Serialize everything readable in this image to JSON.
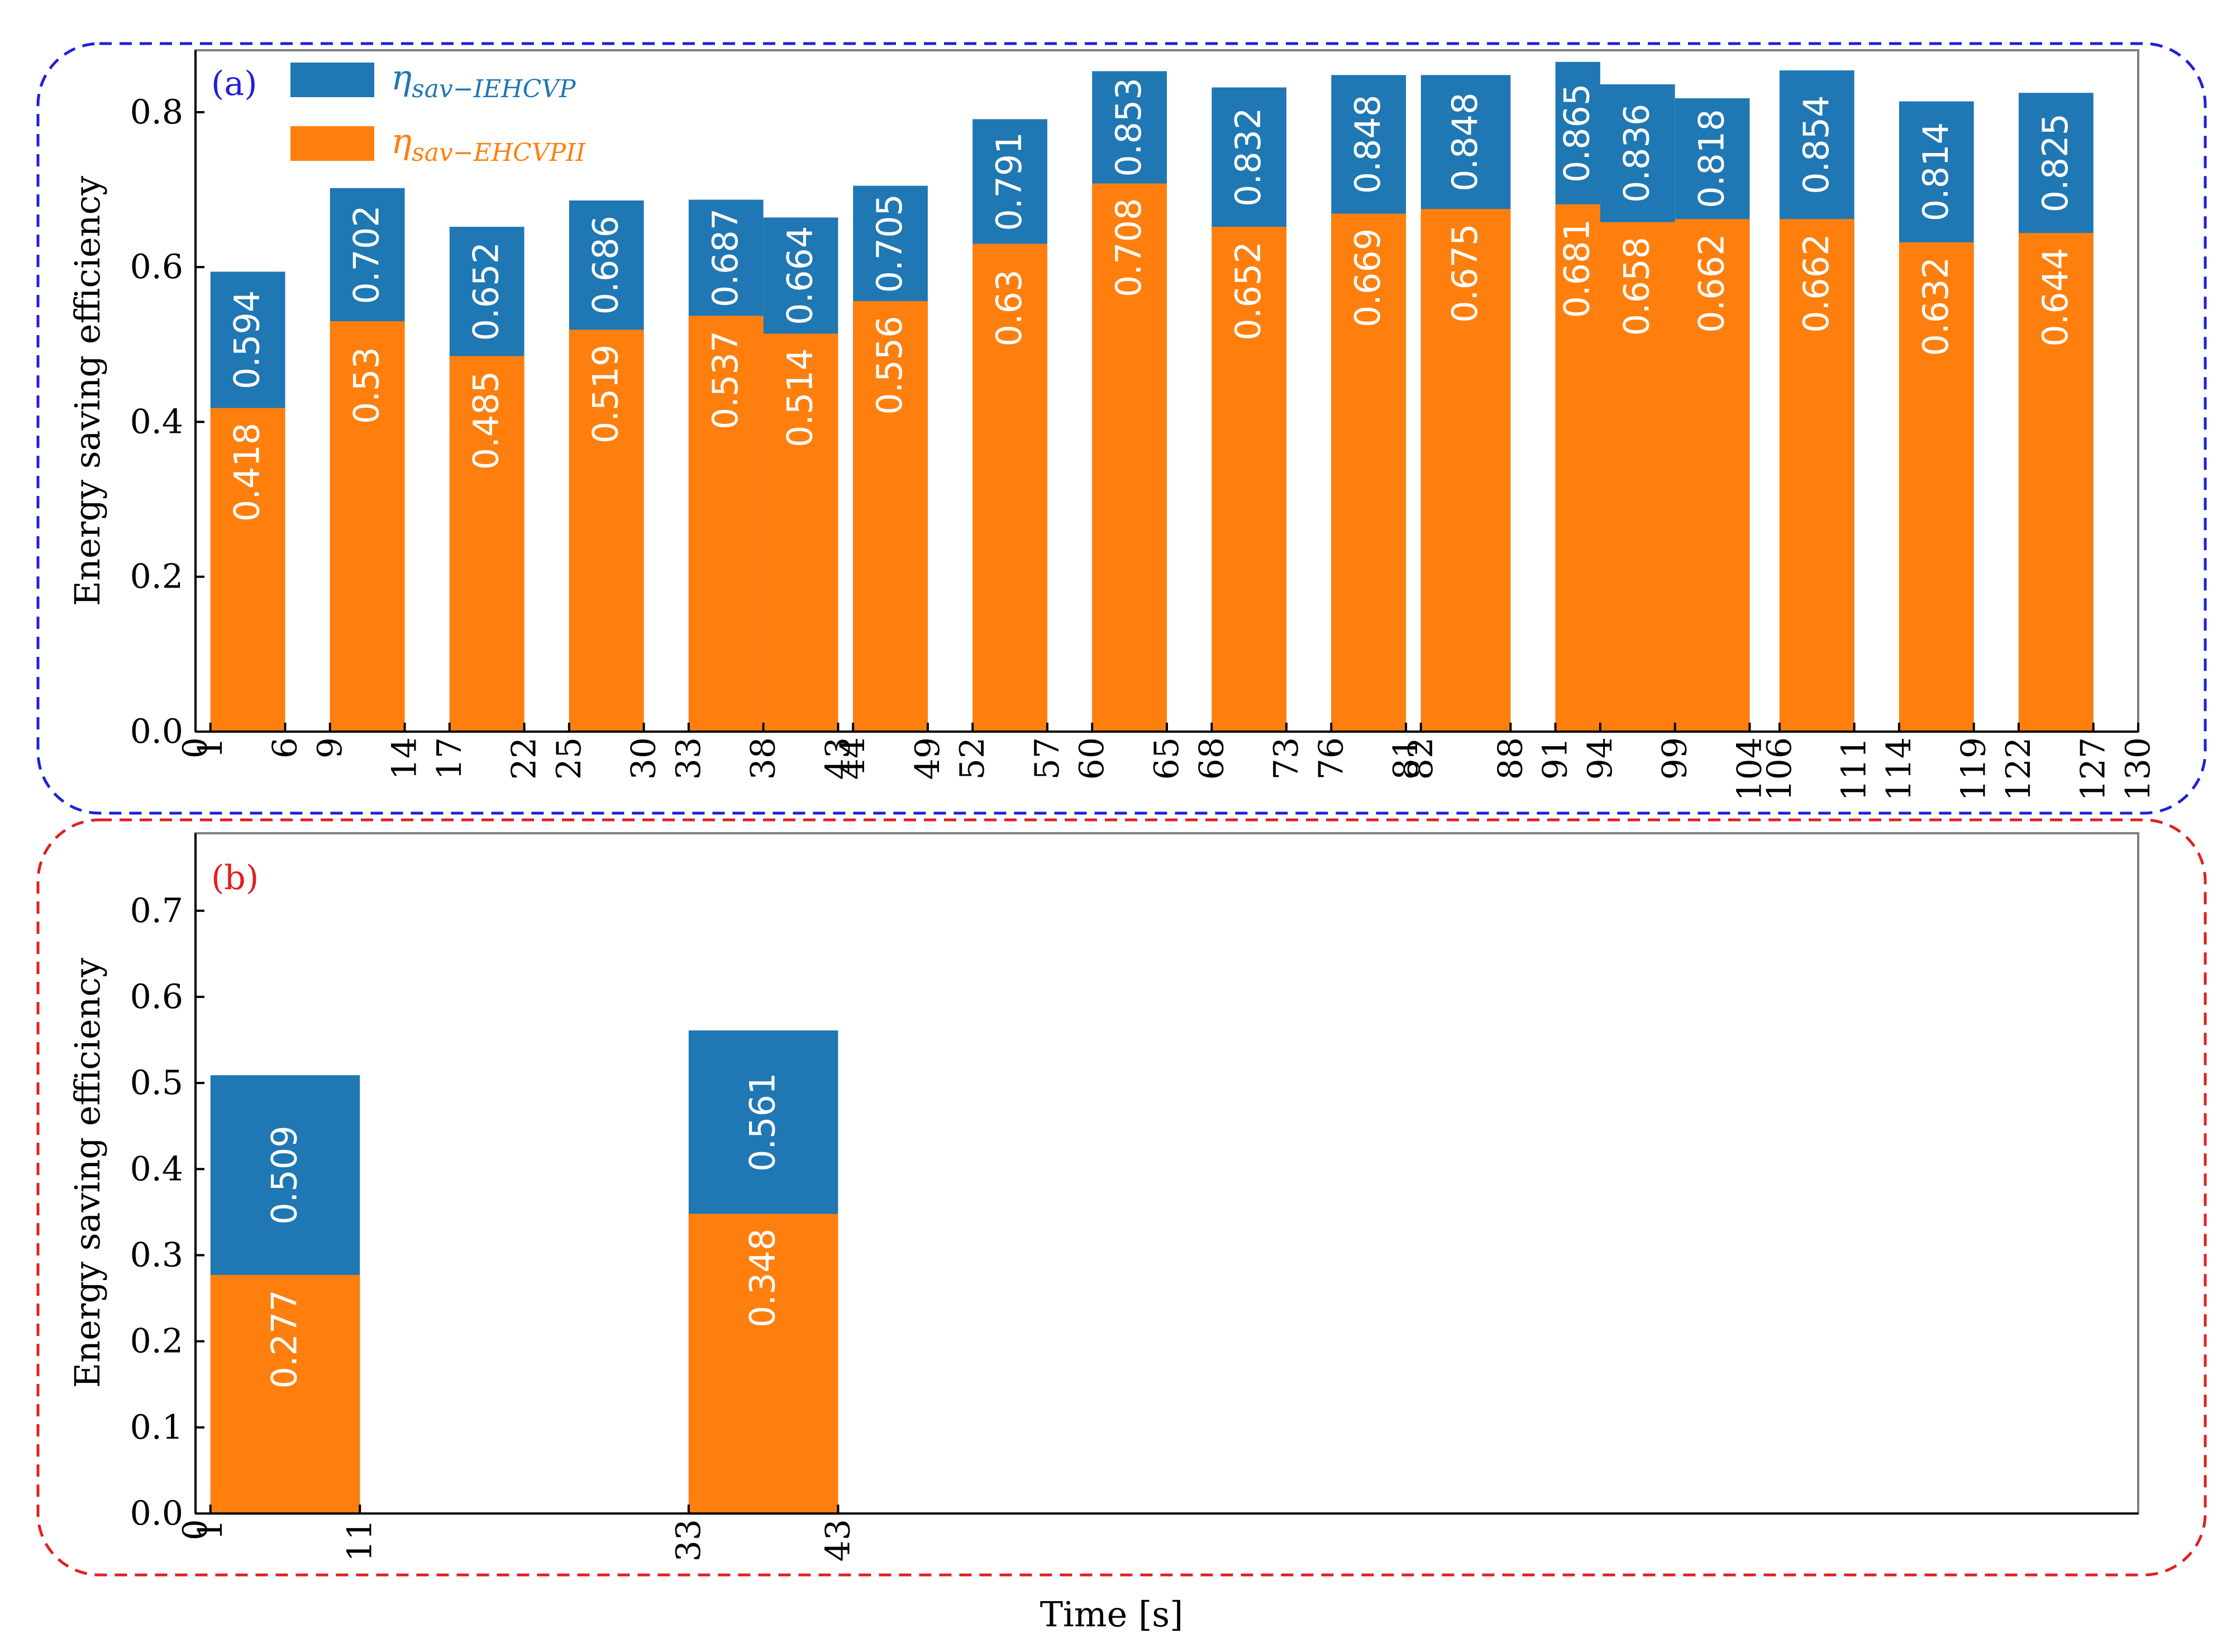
{
  "xlabel": "Time [s]",
  "colors": {
    "ieh": "#1f77b4",
    "ehc": "#ff7f0e",
    "panel_a_border": "#1f1fdd",
    "panel_b_border": "#e02020"
  },
  "legend": {
    "ieh_symbol": "η",
    "ieh_sub": "sav−IEHCVP",
    "ehc_symbol": "η",
    "ehc_sub": "sav−EHCVPII"
  },
  "chart_data": [
    {
      "type": "bar",
      "panel_label": "(a)",
      "ylabel": "Energy saving efficiency",
      "ylim": [
        0,
        0.88
      ],
      "xlim": [
        0,
        130
      ],
      "yticks": [
        "0.0",
        "0.2",
        "0.4",
        "0.6",
        "0.8"
      ],
      "ytick_values": [
        0,
        0.2,
        0.4,
        0.6,
        0.8
      ],
      "xticks": [
        "0",
        "1",
        "6",
        "9",
        "14",
        "17",
        "22",
        "25",
        "30",
        "33",
        "38",
        "43",
        "44",
        "49",
        "52",
        "57",
        "60",
        "65",
        "68",
        "73",
        "76",
        "81",
        "82",
        "88",
        "91",
        "94",
        "99",
        "104",
        "106",
        "111",
        "114",
        "119",
        "122",
        "127",
        "130"
      ],
      "bars": [
        {
          "start": 1,
          "end": 6,
          "ieh": 0.594,
          "ehc": 0.418
        },
        {
          "start": 9,
          "end": 14,
          "ieh": 0.702,
          "ehc": 0.53
        },
        {
          "start": 17,
          "end": 22,
          "ieh": 0.652,
          "ehc": 0.485
        },
        {
          "start": 25,
          "end": 30,
          "ieh": 0.686,
          "ehc": 0.519
        },
        {
          "start": 33,
          "end": 38,
          "ieh": 0.687,
          "ehc": 0.537
        },
        {
          "start": 38,
          "end": 43,
          "ieh": 0.664,
          "ehc": 0.514
        },
        {
          "start": 44,
          "end": 49,
          "ieh": 0.705,
          "ehc": 0.556
        },
        {
          "start": 52,
          "end": 57,
          "ieh": 0.791,
          "ehc": 0.63
        },
        {
          "start": 60,
          "end": 65,
          "ieh": 0.853,
          "ehc": 0.708
        },
        {
          "start": 68,
          "end": 73,
          "ieh": 0.832,
          "ehc": 0.652
        },
        {
          "start": 76,
          "end": 81,
          "ieh": 0.848,
          "ehc": 0.669
        },
        {
          "start": 82,
          "end": 88,
          "ieh": 0.848,
          "ehc": 0.675
        },
        {
          "start": 91,
          "end": 94,
          "ieh": 0.865,
          "ehc": 0.681
        },
        {
          "start": 94,
          "end": 99,
          "ieh": 0.836,
          "ehc": 0.658
        },
        {
          "start": 99,
          "end": 104,
          "ieh": 0.818,
          "ehc": 0.662
        },
        {
          "start": 106,
          "end": 111,
          "ieh": 0.854,
          "ehc": 0.662
        },
        {
          "start": 114,
          "end": 119,
          "ieh": 0.814,
          "ehc": 0.632
        },
        {
          "start": 122,
          "end": 127,
          "ieh": 0.825,
          "ehc": 0.644
        }
      ]
    },
    {
      "type": "bar",
      "panel_label": "(b)",
      "ylabel": "Energy saving efficiency",
      "ylim": [
        0,
        0.79
      ],
      "xlim": [
        0,
        130
      ],
      "yticks": [
        "0.0",
        "0.1",
        "0.2",
        "0.3",
        "0.4",
        "0.5",
        "0.6",
        "0.7"
      ],
      "ytick_values": [
        0,
        0.1,
        0.2,
        0.3,
        0.4,
        0.5,
        0.6,
        0.7
      ],
      "xticks": [
        "0",
        "1",
        "11",
        "33",
        "43"
      ],
      "bars": [
        {
          "start": 1,
          "end": 11,
          "ieh": 0.509,
          "ehc": 0.277
        },
        {
          "start": 33,
          "end": 43,
          "ieh": 0.561,
          "ehc": 0.348
        }
      ]
    }
  ]
}
